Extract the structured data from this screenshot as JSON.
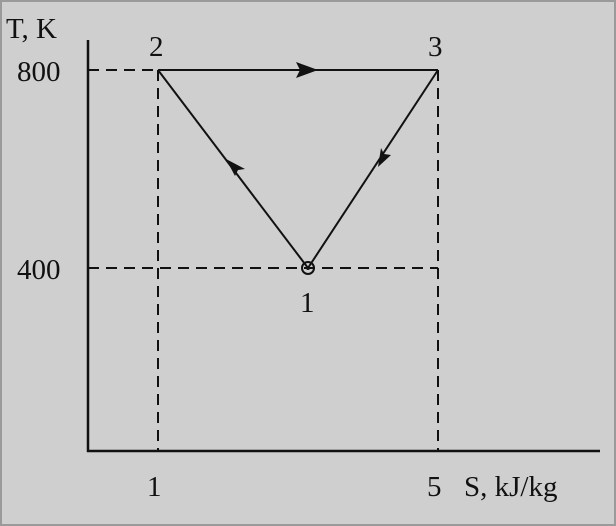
{
  "diagram": {
    "y_axis_label": "T, K",
    "x_axis_label": "S, kJ/kg",
    "y_ticks": [
      "800",
      "400"
    ],
    "x_ticks": [
      "1",
      "5"
    ],
    "state_labels": [
      "1",
      "2",
      "3"
    ],
    "processes": [
      {
        "from": "1",
        "to": "2"
      },
      {
        "from": "2",
        "to": "3"
      },
      {
        "from": "3",
        "to": "1"
      }
    ],
    "colors": {
      "background": "#cfcfcf",
      "ink": "#111111",
      "border": "#9a9a9a"
    }
  }
}
